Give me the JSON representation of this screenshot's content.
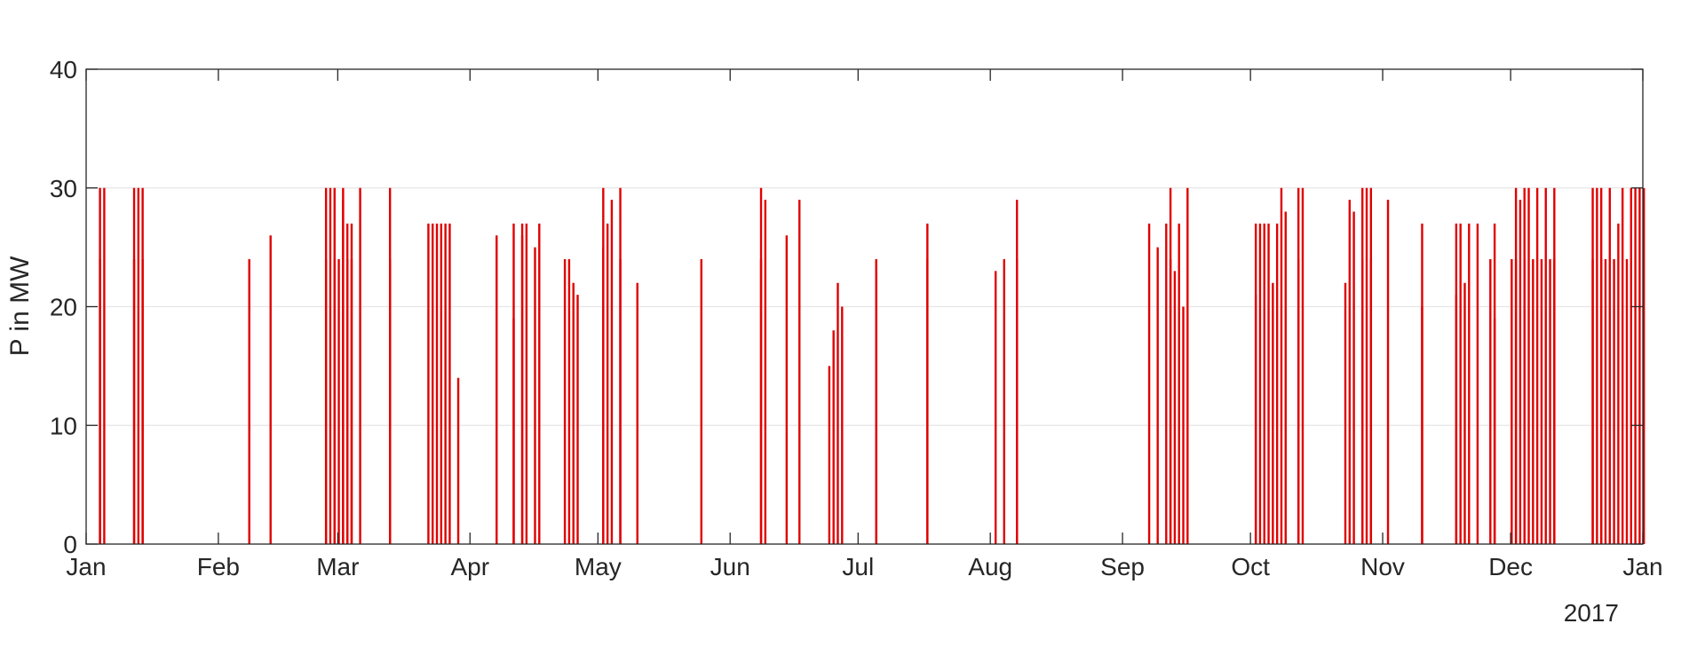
{
  "chart_data": {
    "type": "bar",
    "title": "",
    "xlabel": "",
    "ylabel": "P in MW",
    "year_label": "2017",
    "ylim": [
      0,
      40
    ],
    "yticks": [
      0,
      10,
      20,
      30,
      40
    ],
    "grid": "horizontal",
    "legend": "none",
    "colors": {
      "series": "#e00000",
      "grid": "#e6e6e6",
      "axis": "#262626"
    },
    "x_ticks": [
      {
        "label": "Jan",
        "date": "2017-01-01"
      },
      {
        "label": "Feb",
        "date": "2017-02-01"
      },
      {
        "label": "Mar",
        "date": "2017-03-01"
      },
      {
        "label": "Apr",
        "date": "2017-04-01"
      },
      {
        "label": "May",
        "date": "2017-05-01"
      },
      {
        "label": "Jun",
        "date": "2017-06-01"
      },
      {
        "label": "Jul",
        "date": "2017-07-01"
      },
      {
        "label": "Aug",
        "date": "2017-08-01"
      },
      {
        "label": "Sep",
        "date": "2017-09-01"
      },
      {
        "label": "Oct",
        "date": "2017-10-01"
      },
      {
        "label": "Nov",
        "date": "2017-11-01"
      },
      {
        "label": "Dec",
        "date": "2017-12-01"
      },
      {
        "label": "Jan",
        "date": "2018-01-01"
      }
    ],
    "xlim": [
      "2017-01-01",
      "2018-01-01"
    ],
    "series": [
      {
        "points": [
          [
            "2017-01-03",
            30
          ],
          [
            "2017-01-03",
            24
          ],
          [
            "2017-01-04",
            30
          ],
          [
            "2017-01-11",
            30
          ],
          [
            "2017-01-11",
            24
          ],
          [
            "2017-01-12",
            30
          ],
          [
            "2017-01-13",
            24
          ],
          [
            "2017-01-13",
            30
          ],
          [
            "2017-02-07",
            24
          ],
          [
            "2017-02-12",
            26
          ],
          [
            "2017-02-25",
            30
          ],
          [
            "2017-02-25",
            24
          ],
          [
            "2017-02-26",
            30
          ],
          [
            "2017-02-27",
            24
          ],
          [
            "2017-02-27",
            30
          ],
          [
            "2017-02-28",
            24
          ],
          [
            "2017-03-01",
            30
          ],
          [
            "2017-03-01",
            29
          ],
          [
            "2017-03-02",
            24
          ],
          [
            "2017-03-02",
            27
          ],
          [
            "2017-03-03",
            24
          ],
          [
            "2017-03-03",
            27
          ],
          [
            "2017-03-05",
            30
          ],
          [
            "2017-03-12",
            24
          ],
          [
            "2017-03-12",
            30
          ],
          [
            "2017-03-21",
            27
          ],
          [
            "2017-03-22",
            27
          ],
          [
            "2017-03-23",
            27
          ],
          [
            "2017-03-24",
            27
          ],
          [
            "2017-03-25",
            27
          ],
          [
            "2017-03-26",
            27
          ],
          [
            "2017-03-28",
            14
          ],
          [
            "2017-04-06",
            26
          ],
          [
            "2017-04-10",
            19
          ],
          [
            "2017-04-10",
            27
          ],
          [
            "2017-04-12",
            26
          ],
          [
            "2017-04-12",
            27
          ],
          [
            "2017-04-13",
            27
          ],
          [
            "2017-04-15",
            25
          ],
          [
            "2017-04-16",
            27
          ],
          [
            "2017-04-22",
            24
          ],
          [
            "2017-04-23",
            24
          ],
          [
            "2017-04-24",
            22
          ],
          [
            "2017-04-25",
            21
          ],
          [
            "2017-05-01",
            30
          ],
          [
            "2017-05-01",
            25
          ],
          [
            "2017-05-02",
            27
          ],
          [
            "2017-05-03",
            29
          ],
          [
            "2017-05-05",
            30
          ],
          [
            "2017-05-05",
            24
          ],
          [
            "2017-05-09",
            22
          ],
          [
            "2017-05-24",
            24
          ],
          [
            "2017-06-07",
            30
          ],
          [
            "2017-06-07",
            24
          ],
          [
            "2017-06-08",
            29
          ],
          [
            "2017-06-13",
            26
          ],
          [
            "2017-06-16",
            29
          ],
          [
            "2017-06-23",
            15
          ],
          [
            "2017-06-24",
            18
          ],
          [
            "2017-06-25",
            22
          ],
          [
            "2017-06-26",
            20
          ],
          [
            "2017-07-04",
            24
          ],
          [
            "2017-07-04",
            23
          ],
          [
            "2017-07-16",
            27
          ],
          [
            "2017-07-16",
            24
          ],
          [
            "2017-08-01",
            23
          ],
          [
            "2017-08-03",
            24
          ],
          [
            "2017-08-06",
            29
          ],
          [
            "2017-08-06",
            24
          ],
          [
            "2017-09-06",
            27
          ],
          [
            "2017-09-08",
            25
          ],
          [
            "2017-09-10",
            27
          ],
          [
            "2017-09-11",
            24
          ],
          [
            "2017-09-11",
            30
          ],
          [
            "2017-09-12",
            23
          ],
          [
            "2017-09-13",
            27
          ],
          [
            "2017-09-14",
            20
          ],
          [
            "2017-09-15",
            30
          ],
          [
            "2017-10-01",
            27
          ],
          [
            "2017-10-01",
            21
          ],
          [
            "2017-10-02",
            27
          ],
          [
            "2017-10-03",
            27
          ],
          [
            "2017-10-04",
            27
          ],
          [
            "2017-10-05",
            22
          ],
          [
            "2017-10-06",
            27
          ],
          [
            "2017-10-07",
            30
          ],
          [
            "2017-10-08",
            28
          ],
          [
            "2017-10-11",
            30
          ],
          [
            "2017-10-11",
            24
          ],
          [
            "2017-10-12",
            30
          ],
          [
            "2017-10-22",
            22
          ],
          [
            "2017-10-23",
            29
          ],
          [
            "2017-10-24",
            28
          ],
          [
            "2017-10-26",
            30
          ],
          [
            "2017-10-26",
            24
          ],
          [
            "2017-10-27",
            30
          ],
          [
            "2017-10-28",
            24
          ],
          [
            "2017-10-28",
            30
          ],
          [
            "2017-11-01",
            29
          ],
          [
            "2017-11-09",
            27
          ],
          [
            "2017-11-09",
            20
          ],
          [
            "2017-11-17",
            27
          ],
          [
            "2017-11-17",
            21
          ],
          [
            "2017-11-18",
            27
          ],
          [
            "2017-11-19",
            22
          ],
          [
            "2017-11-20",
            27
          ],
          [
            "2017-11-22",
            27
          ],
          [
            "2017-11-25",
            24
          ],
          [
            "2017-11-26",
            27
          ],
          [
            "2017-11-26",
            19
          ],
          [
            "2017-11-30",
            24
          ],
          [
            "2017-12-01",
            30
          ],
          [
            "2017-12-01",
            24
          ],
          [
            "2017-12-02",
            29
          ],
          [
            "2017-12-03",
            30
          ],
          [
            "2017-12-03",
            24
          ],
          [
            "2017-12-04",
            30
          ],
          [
            "2017-12-05",
            24
          ],
          [
            "2017-12-06",
            30
          ],
          [
            "2017-12-07",
            24
          ],
          [
            "2017-12-08",
            30
          ],
          [
            "2017-12-09",
            24
          ],
          [
            "2017-12-10",
            30
          ],
          [
            "2017-12-10",
            24
          ],
          [
            "2017-12-19",
            30
          ],
          [
            "2017-12-19",
            24
          ],
          [
            "2017-12-20",
            30
          ],
          [
            "2017-12-21",
            24
          ],
          [
            "2017-12-21",
            30
          ],
          [
            "2017-12-22",
            24
          ],
          [
            "2017-12-23",
            30
          ],
          [
            "2017-12-24",
            24
          ],
          [
            "2017-12-25",
            27
          ],
          [
            "2017-12-26",
            30
          ],
          [
            "2017-12-27",
            24
          ],
          [
            "2017-12-28",
            30
          ],
          [
            "2017-12-29",
            30
          ],
          [
            "2017-12-30",
            30
          ],
          [
            "2017-12-31",
            30
          ]
        ]
      }
    ]
  }
}
